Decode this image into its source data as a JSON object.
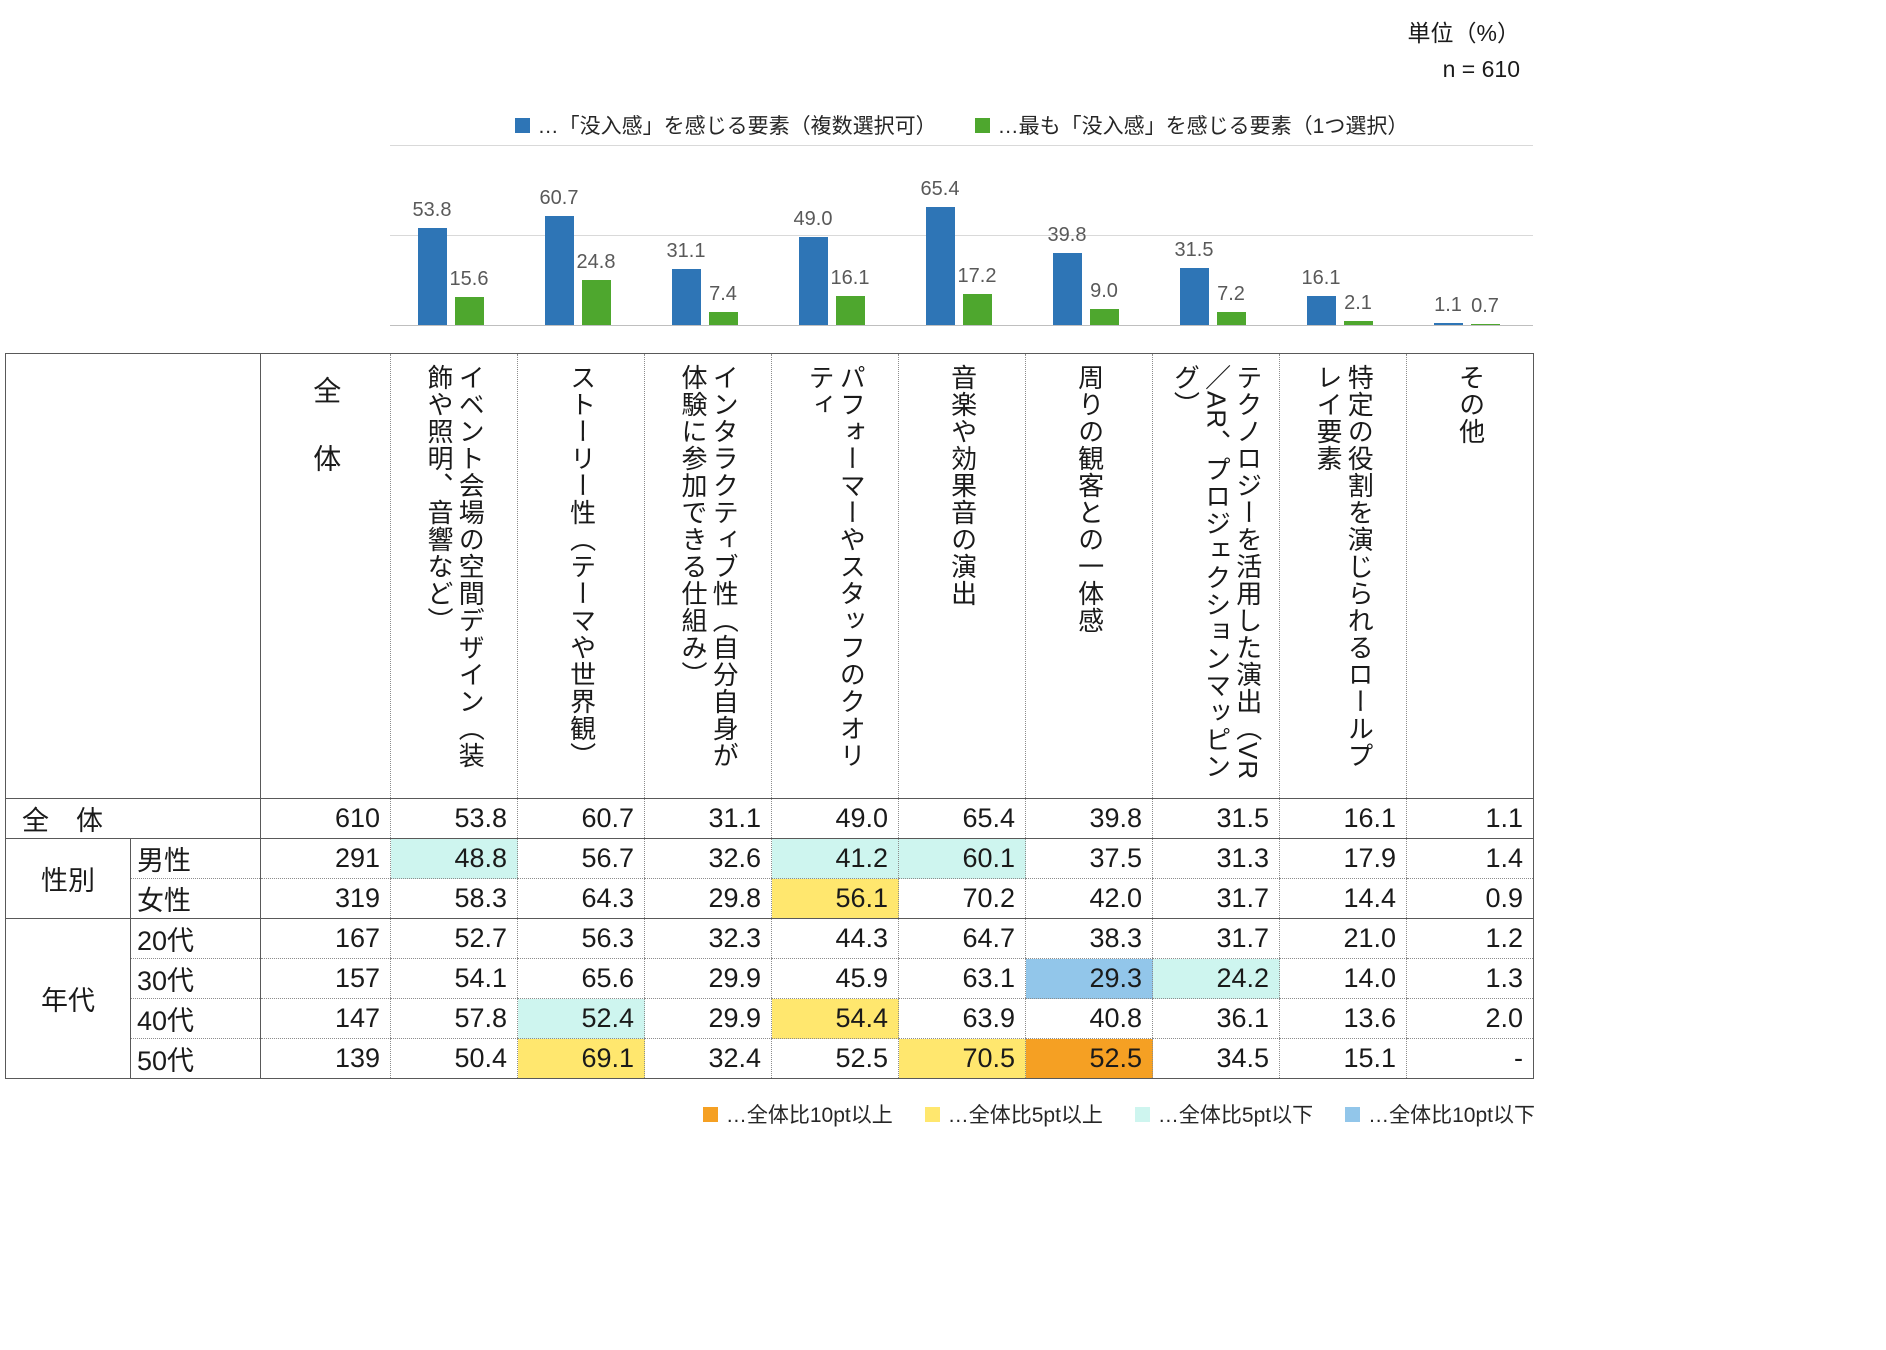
{
  "meta": {
    "unit_label": "単位（%）",
    "n_label": "n = 610"
  },
  "chart_data": {
    "type": "bar",
    "title": "",
    "categories": [
      "イベント会場の空間デザイン（装飾や照明、音響など）",
      "ストーリー性（テーマや世界観）",
      "インタラクティブ性（自分自身が体験に参加できる仕組み）",
      "パフォーマーやスタッフのクオリティ",
      "音楽や効果音の演出",
      "周りの観客との一体感",
      "テクノロジーを活用した演出（VR／AR、プロジェクションマッピング）",
      "特定の役割を演じられるロールプレイ要素",
      "その他"
    ],
    "series": [
      {
        "name": "…「没入感」を感じる要素（複数選択可）",
        "color": "#2E75B6",
        "values": [
          53.8,
          60.7,
          31.1,
          49.0,
          65.4,
          39.8,
          31.5,
          16.1,
          1.1
        ],
        "labels": [
          "53.8",
          "60.7",
          "31.1",
          "49.0",
          "65.4",
          "39.8",
          "31.5",
          "16.1",
          "1.1"
        ]
      },
      {
        "name": "…最も「没入感」を感じる要素（1つ選択）",
        "color": "#4EA72E",
        "values": [
          15.6,
          24.8,
          7.4,
          16.1,
          17.2,
          9.0,
          7.2,
          2.1,
          0.7
        ],
        "labels": [
          "15.6",
          "24.8",
          "7.4",
          "16.1",
          "17.2",
          "9.0",
          "7.2",
          "2.1",
          "0.7"
        ]
      }
    ],
    "ylim": [
      0,
      100
    ],
    "gridlines": [
      0,
      50,
      100
    ],
    "grid": "horizontal",
    "legend_position": "top"
  },
  "table": {
    "col_headers": [
      "全　体",
      "イベント会場の空間デザイン（装飾や照明、音響など）",
      "ストーリー性（テーマや世界観）",
      "インタラクティブ性（自分自身が体験に参加できる仕組み）",
      "パフォーマーやスタッフのクオリティ",
      "音楽や効果音の演出",
      "周りの観客との一体感",
      "テクノロジーを活用した演出（VR／AR、プロジェクションマッピング）",
      "特定の役割を演じられるロールプレイ要素",
      "その他"
    ],
    "highlight_colors": {
      "orange": "#F5A023",
      "yellow": "#FFE76E",
      "cyan": "#CEF5EF",
      "blue": "#92C6EA"
    },
    "rows": [
      {
        "row_label": "全　体",
        "label_colspan": 2,
        "n": "610",
        "values": [
          "53.8",
          "60.7",
          "31.1",
          "49.0",
          "65.4",
          "39.8",
          "31.5",
          "16.1",
          "1.1"
        ],
        "highlights": [
          "",
          "",
          "",
          "",
          "",
          "",
          "",
          "",
          ""
        ],
        "sep_bottom": "solid"
      },
      {
        "group": "性別",
        "group_span": 2,
        "row_label": "男性",
        "n": "291",
        "values": [
          "48.8",
          "56.7",
          "32.6",
          "41.2",
          "60.1",
          "37.5",
          "31.3",
          "17.9",
          "1.4"
        ],
        "highlights": [
          "cyan",
          "",
          "",
          "cyan",
          "cyan",
          "",
          "",
          "",
          ""
        ],
        "sep_bottom": "dotted"
      },
      {
        "row_label": "女性",
        "n": "319",
        "values": [
          "58.3",
          "64.3",
          "29.8",
          "56.1",
          "70.2",
          "42.0",
          "31.7",
          "14.4",
          "0.9"
        ],
        "highlights": [
          "",
          "",
          "",
          "yellow",
          "",
          "",
          "",
          "",
          ""
        ],
        "sep_bottom": "solid"
      },
      {
        "group": "年代",
        "group_span": 4,
        "row_label": "20代",
        "n": "167",
        "values": [
          "52.7",
          "56.3",
          "32.3",
          "44.3",
          "64.7",
          "38.3",
          "31.7",
          "21.0",
          "1.2"
        ],
        "highlights": [
          "",
          "",
          "",
          "",
          "",
          "",
          "",
          "",
          ""
        ],
        "sep_bottom": "dotted"
      },
      {
        "row_label": "30代",
        "n": "157",
        "values": [
          "54.1",
          "65.6",
          "29.9",
          "45.9",
          "63.1",
          "29.3",
          "24.2",
          "14.0",
          "1.3"
        ],
        "highlights": [
          "",
          "",
          "",
          "",
          "",
          "blue",
          "cyan",
          "",
          ""
        ],
        "sep_bottom": "dotted"
      },
      {
        "row_label": "40代",
        "n": "147",
        "values": [
          "57.8",
          "52.4",
          "29.9",
          "54.4",
          "63.9",
          "40.8",
          "36.1",
          "13.6",
          "2.0"
        ],
        "highlights": [
          "",
          "cyan",
          "",
          "yellow",
          "",
          "",
          "",
          "",
          ""
        ],
        "sep_bottom": "dotted"
      },
      {
        "row_label": "50代",
        "n": "139",
        "values": [
          "50.4",
          "69.1",
          "32.4",
          "52.5",
          "70.5",
          "52.5",
          "34.5",
          "15.1",
          "-"
        ],
        "highlights": [
          "",
          "yellow",
          "",
          "",
          "yellow",
          "orange",
          "",
          "",
          ""
        ],
        "sep_bottom": "solid"
      }
    ]
  },
  "table_legend": [
    {
      "key": "orange",
      "label": "…全体比10pt以上"
    },
    {
      "key": "yellow",
      "label": "…全体比5pt以上"
    },
    {
      "key": "cyan",
      "label": "…全体比5pt以下"
    },
    {
      "key": "blue",
      "label": "…全体比10pt以下"
    }
  ]
}
